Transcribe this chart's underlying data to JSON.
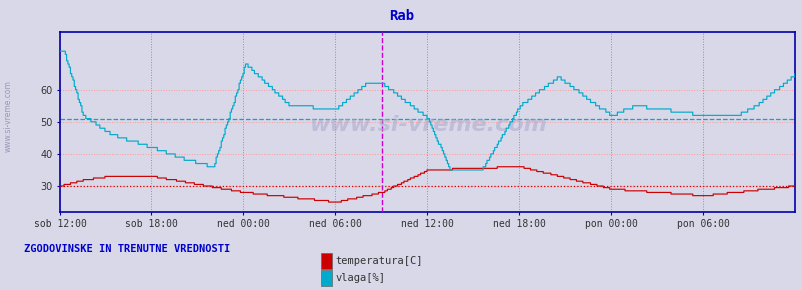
{
  "title": "Rab",
  "title_color": "#0000cc",
  "background_color": "#d8d8e8",
  "plot_bg_color": "#d8d8e8",
  "x_labels": [
    "sob 12:00",
    "sob 18:00",
    "ned 00:00",
    "ned 06:00",
    "ned 12:00",
    "ned 18:00",
    "pon 00:00",
    "pon 06:00"
  ],
  "yticks": [
    30,
    40,
    50,
    60
  ],
  "ylim": [
    22,
    78
  ],
  "temp_color": "#cc0000",
  "humid_color": "#00aacc",
  "vline_color": "#cc00cc",
  "watermark": "www.si-vreme.com",
  "legend_text": "ZGODOVINSKE IN TRENUTNE VREDNOSTI",
  "legend_color": "#0000cc",
  "label1": "temperatura[C]",
  "label2": "vlaga[%]",
  "sidewatermark": "www.si-vreme.com",
  "n_points": 576,
  "avg_temp": 30.0,
  "avg_humid": 51.0
}
